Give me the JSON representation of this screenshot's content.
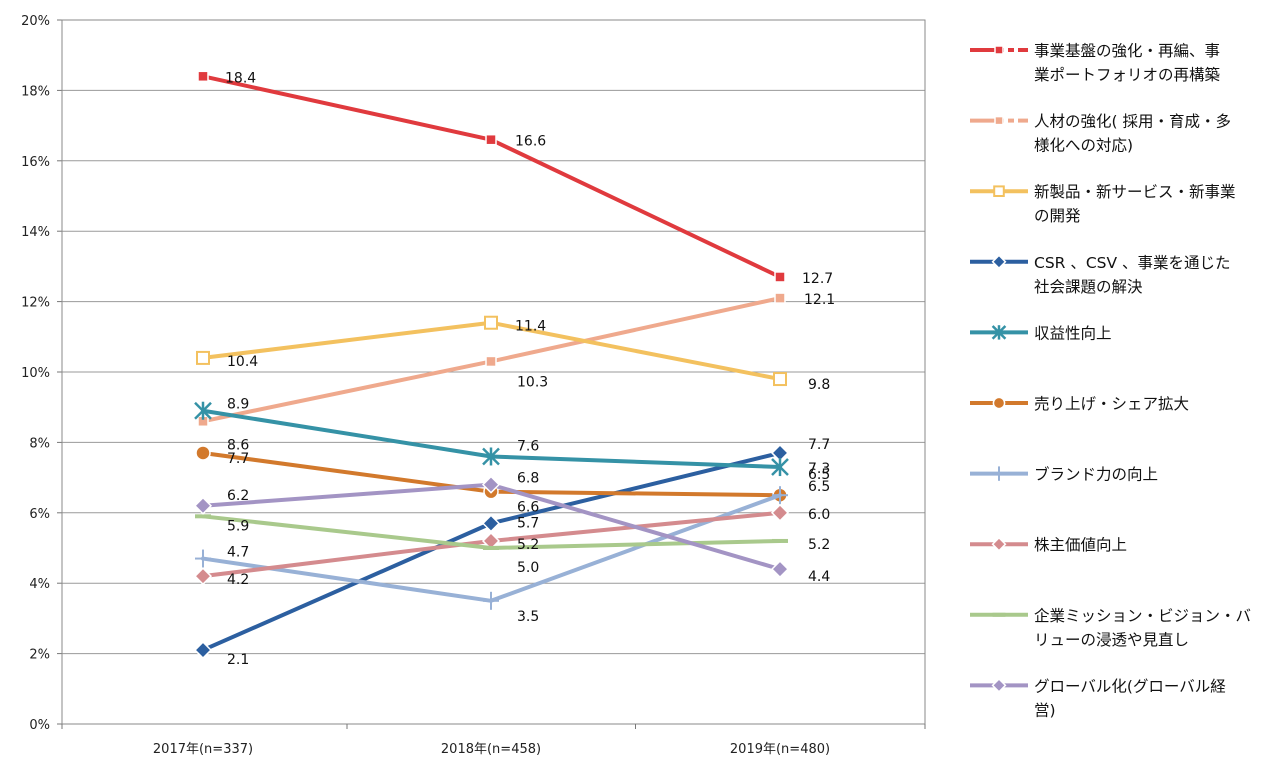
{
  "chart_data": {
    "type": "line",
    "title": "",
    "xlabel": "",
    "ylabel": "",
    "ylim": [
      0,
      20
    ],
    "yticks": [
      0,
      2,
      4,
      6,
      8,
      10,
      12,
      14,
      16,
      18,
      20
    ],
    "ytick_labels": [
      "0%",
      "2%",
      "4%",
      "6%",
      "8%",
      "10%",
      "12%",
      "14%",
      "16%",
      "18%",
      "20%"
    ],
    "grid": true,
    "legend_position": "right",
    "categories": [
      "2017年(n=337)",
      "2018年(n=458)",
      "2019年(n=480)"
    ],
    "series": [
      {
        "name": "事業基盤の強化・再編、事業ポートフォリオの再構築",
        "legend_lines": [
          "事業基盤の強化・再編、事",
          "業ポートフォリオの再構築"
        ],
        "color": "#e03a3e",
        "marker": "square",
        "dash": true,
        "values": [
          18.4,
          16.6,
          12.7
        ],
        "labels": [
          "18.4",
          "16.6",
          "12.7"
        ]
      },
      {
        "name": "人材の強化(採用・育成・多様化への対応)",
        "legend_lines": [
          "人材の強化( 採用・育成・多",
          "様化への対応)"
        ],
        "color": "#efa98d",
        "marker": "square",
        "dash": true,
        "values": [
          8.6,
          10.3,
          12.1
        ],
        "labels": [
          "8.6",
          "10.3",
          "12.1"
        ]
      },
      {
        "name": "新製品・新サービス・新事業の開発",
        "legend_lines": [
          "新製品・新サービス・新事業",
          "の開発"
        ],
        "color": "#f3c15f",
        "marker": "open-square",
        "dash": false,
        "values": [
          10.4,
          11.4,
          9.8
        ],
        "labels": [
          "10.4",
          "11.4",
          "9.8"
        ]
      },
      {
        "name": "CSR、CSV、事業を通じた社会課題の解決",
        "legend_lines": [
          "CSR 、CSV 、事業を通じた",
          "社会課題の解決"
        ],
        "color": "#2c5fa0",
        "marker": "diamond",
        "dash": false,
        "values": [
          2.1,
          5.7,
          7.7
        ],
        "labels": [
          "2.1",
          "5.7",
          "7.7"
        ]
      },
      {
        "name": "収益性向上",
        "legend_lines": [
          "収益性向上"
        ],
        "color": "#3592a6",
        "marker": "star",
        "dash": false,
        "values": [
          8.9,
          7.6,
          7.3
        ],
        "labels": [
          "8.9",
          "7.6",
          "7.3"
        ]
      },
      {
        "name": "売り上げ・シェア拡大",
        "legend_lines": [
          "売り上げ・シェア拡大"
        ],
        "color": "#d2792c",
        "marker": "circle",
        "dash": false,
        "values": [
          7.7,
          6.6,
          6.5
        ],
        "labels": [
          "7.7",
          "6.6",
          "6.5"
        ]
      },
      {
        "name": "ブランド力の向上",
        "legend_lines": [
          "ブランド力の向上"
        ],
        "color": "#98b1d6",
        "marker": "plus",
        "dash": false,
        "values": [
          4.7,
          3.5,
          6.5
        ],
        "labels": [
          "4.7",
          "3.5",
          "6.5"
        ]
      },
      {
        "name": "株主価値向上",
        "legend_lines": [
          "株主価値向上"
        ],
        "color": "#d48b8e",
        "marker": "diamond",
        "dash": false,
        "values": [
          4.2,
          5.2,
          6.0
        ],
        "labels": [
          "4.2",
          "5.2",
          "6.0"
        ]
      },
      {
        "name": "企業ミッション・ビジョン・バリューの浸透や見直し",
        "legend_lines": [
          "企業ミッション・ビジョン・バ",
          "リューの浸透や見直し"
        ],
        "color": "#a9c98c",
        "marker": "dash",
        "dash": false,
        "values": [
          5.9,
          5.0,
          5.2
        ],
        "labels": [
          "5.9",
          "5.0",
          "5.2"
        ]
      },
      {
        "name": "グローバル化(グローバル経営)",
        "legend_lines": [
          "グローバル化(グローバル経",
          "営)"
        ],
        "color": "#a394c4",
        "marker": "diamond",
        "dash": false,
        "values": [
          6.2,
          6.8,
          4.4
        ],
        "labels": [
          "6.2",
          "6.8",
          "4.4"
        ]
      }
    ]
  }
}
